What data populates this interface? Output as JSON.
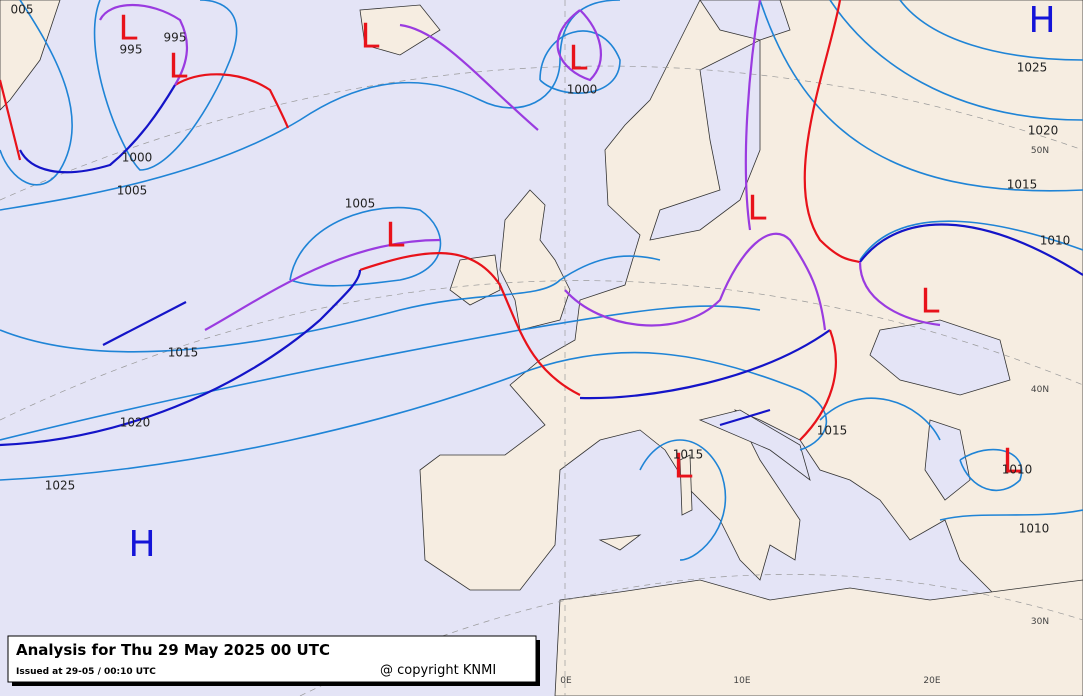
{
  "header": {
    "title": "Analysis for Thu 29 May 2025 00 UTC",
    "issued": "Issued at 29-05 / 00:10 UTC",
    "copyright": "@ copyright KNMI"
  },
  "pressure_centers": [
    "L",
    "L",
    "L",
    "L",
    "L",
    "L",
    "L",
    "L",
    "L",
    "H",
    "H"
  ],
  "isobar_labels": [
    "995",
    "995",
    "1000",
    "1000",
    "1005",
    "1005",
    "1015",
    "1020",
    "1025",
    "1025",
    "1020",
    "1015",
    "1010",
    "1015",
    "1015",
    "1010",
    "1010",
    "005"
  ],
  "grid_labels": [
    "50N",
    "40N",
    "30N",
    "0E",
    "10E",
    "20E"
  ]
}
